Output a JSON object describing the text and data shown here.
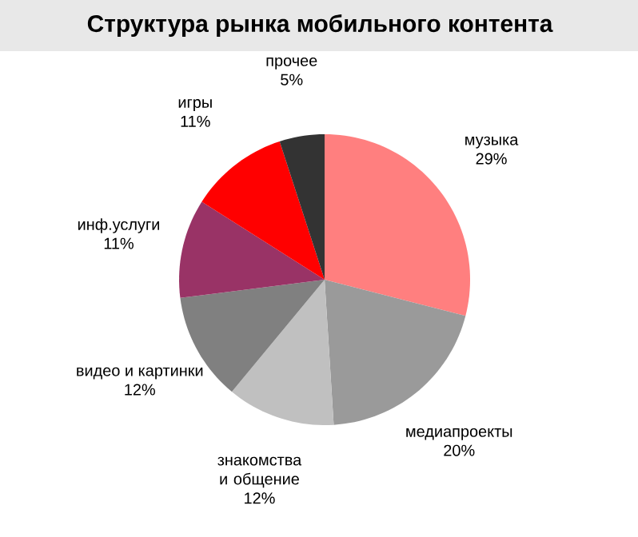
{
  "chart_data": {
    "type": "pie",
    "title": "Структура рынка мобильного контента",
    "categories": [
      "музыка",
      "медиапроекты",
      "знакомства и общение",
      "видео и картинки",
      "инф.услуги",
      "игры",
      "прочее"
    ],
    "values": [
      29,
      20,
      12,
      12,
      11,
      11,
      5
    ],
    "value_labels": [
      "29%",
      "20%",
      "12%",
      "12%",
      "11%",
      "11%",
      "5%"
    ],
    "colors": [
      "#ff7f7f",
      "#9a9a9a",
      "#c0c0c0",
      "#808080",
      "#993366",
      "#ff0000",
      "#333333"
    ]
  }
}
